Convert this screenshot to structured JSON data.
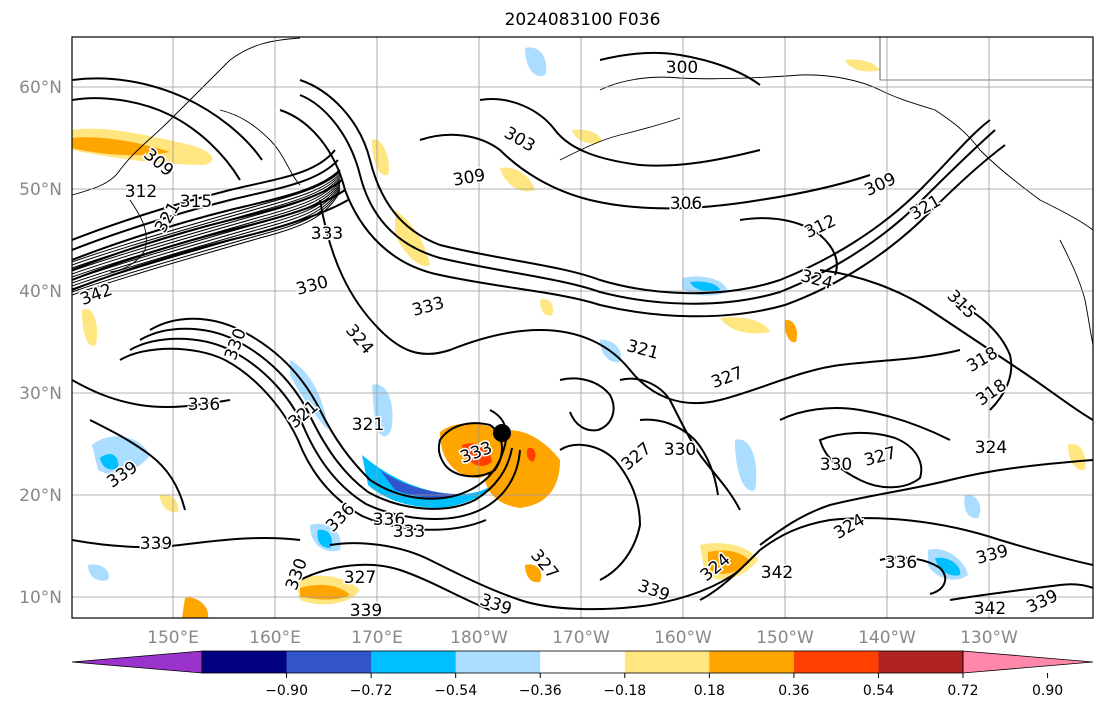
{
  "title": "2024083100 F036",
  "axes": {
    "lat_labels": [
      "60°N",
      "50°N",
      "40°N",
      "30°N",
      "20°N",
      "10°N"
    ],
    "lon_labels": [
      "150°E",
      "160°E",
      "170°E",
      "180°W",
      "170°W",
      "160°W",
      "150°W",
      "140°W",
      "130°W"
    ]
  },
  "colorbar": {
    "tick_labels": [
      "−0.90",
      "−0.72",
      "−0.54",
      "−0.36",
      "−0.18",
      "0.18",
      "0.36",
      "0.54",
      "0.72",
      "0.90"
    ],
    "colors": [
      "#9933cc",
      "#000080",
      "#3355cc",
      "#00bfff",
      "#aaddff",
      "#ffffff",
      "#ffe680",
      "#ffa500",
      "#ff4000",
      "#b22222",
      "#ff88aa"
    ],
    "extend": "both"
  },
  "contour_labels": [
    "300",
    "303",
    "306",
    "309",
    "312",
    "315",
    "318",
    "321",
    "324",
    "327",
    "330",
    "333",
    "336",
    "339",
    "342"
  ],
  "marker": "black dot"
}
